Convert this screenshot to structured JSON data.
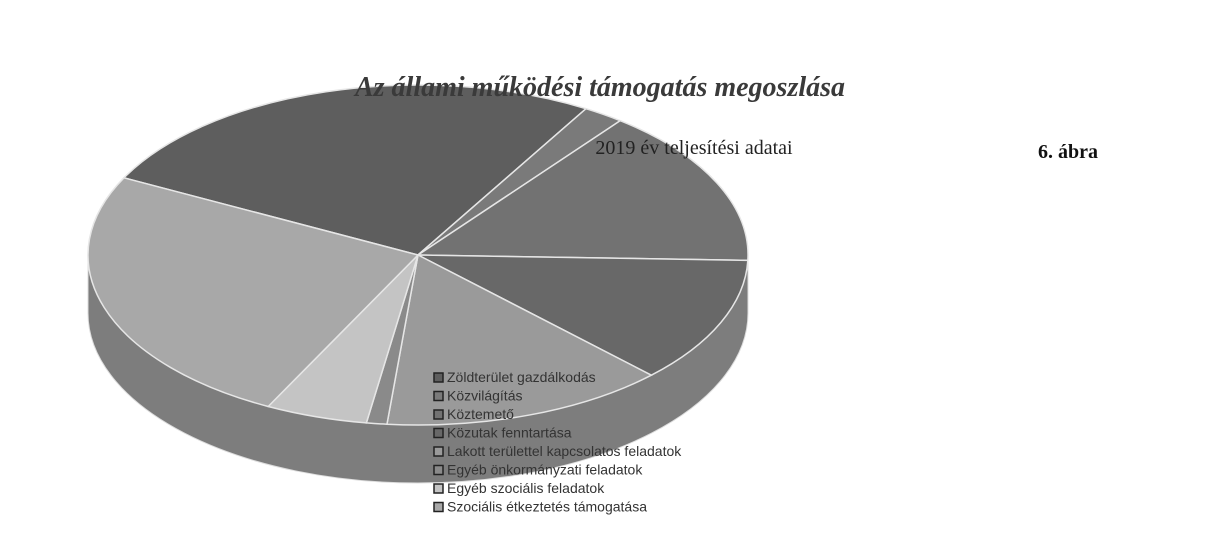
{
  "chart_data": {
    "type": "pie",
    "title": "Az állami működési támogatás megoszlása",
    "subtitle": "2019 év teljesítési adatai",
    "figure_label": "6. ábra",
    "categories": [
      "Zöldterület gazdálkodás",
      "Közvilágítás",
      "Köztemető",
      "Közutak fenntartása",
      "Lakott területtel kapcsolatos feladatok",
      "Egyéb önkormányzati feladatok",
      "Egyéb szociális feladatok",
      "Szociális étkeztetés támogatása"
    ],
    "values": [
      26,
      2,
      15,
      12,
      14,
      1,
      5,
      25
    ],
    "colors": [
      "#5e5e5e",
      "#7a7a7a",
      "#727272",
      "#686868",
      "#9a9a9a",
      "#8a8a8a",
      "#c4c4c4",
      "#a8a8a8"
    ]
  }
}
